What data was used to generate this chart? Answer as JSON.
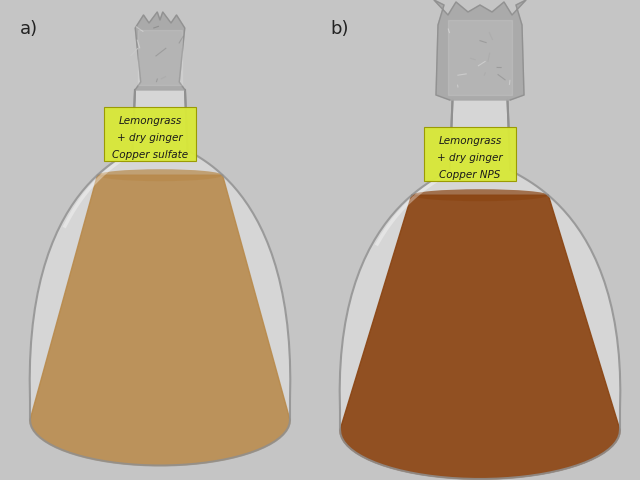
{
  "fig_bg_color": "#c5c5c5",
  "panel_a_label": "a)",
  "panel_b_label": "b)",
  "label_a_lines": [
    "Lemongrass",
    "+ dry ginger",
    "Copper sulfate"
  ],
  "label_b_lines": [
    "Lemongrass",
    "+ dry ginger",
    "Copper NPS"
  ],
  "flask_a_liquid_color": "#b8894a",
  "flask_b_liquid_color": "#8b4513",
  "flask_a_liquid_alpha": 0.88,
  "flask_b_liquid_alpha": 0.92,
  "foil_color_light": "#d0d0d0",
  "foil_color_mid": "#a8a8a8",
  "foil_color_dark": "#888888",
  "label_bg_color": "#d8e83a",
  "label_text_color": "#1a1a1a",
  "glass_edge_color": "#909090",
  "glass_fill_color": "#e8e8e8"
}
